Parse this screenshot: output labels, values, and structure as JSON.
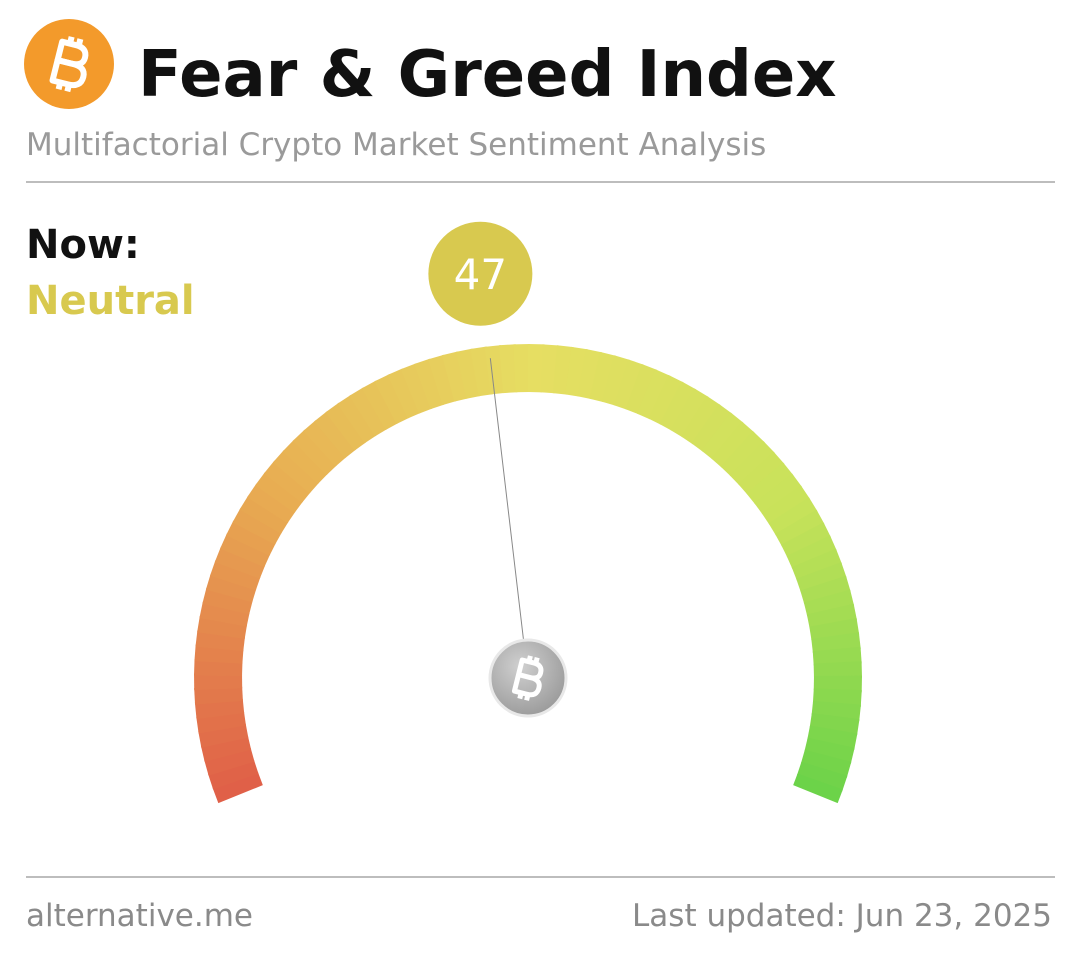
{
  "chart_data": {
    "type": "gauge",
    "title": "Fear & Greed Index",
    "subtitle": "Multifactorial Crypto Market Sentiment Analysis",
    "now_label": "Now:",
    "classification": "Neutral",
    "value": 47,
    "color": "#d8c94f",
    "ylim": [
      0,
      100
    ],
    "source": "alternative.me",
    "last_updated": "Last updated: Jun 23, 2025"
  }
}
